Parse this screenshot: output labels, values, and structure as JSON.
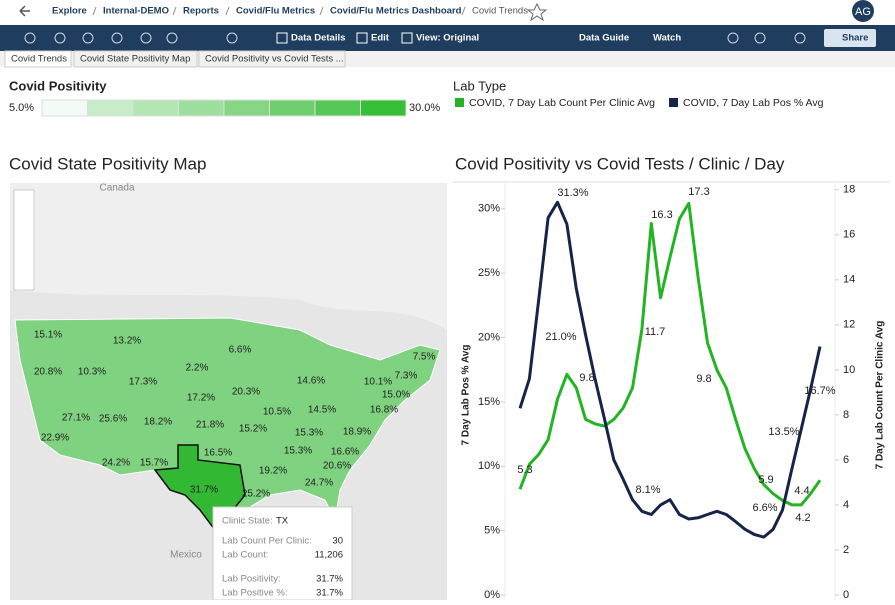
{
  "header": {
    "breadcrumb": [
      "Explore",
      "Internal-DEMO",
      "Reports",
      "Covid/Flu Metrics",
      "Covid/Flu Metrics Dashboard",
      "Covid Trends"
    ],
    "avatar": "AG"
  },
  "toolbar": {
    "left": [
      "Data Details",
      "Edit",
      "View: Original"
    ],
    "right": [
      "Data Guide",
      "Watch",
      "Share"
    ]
  },
  "tabs": [
    "Covid Trends",
    "Covid State Positivity Map",
    "Covid Positivity vs Covid Tests ..."
  ],
  "legends": {
    "positivity": {
      "title": "Covid Positivity",
      "min": "5.0%",
      "max": "30.0%"
    },
    "lab_type": {
      "title": "Lab Type",
      "items": [
        "COVID, 7 Day Lab Count Per Clinic Avg",
        "COVID, 7 Day Lab Pos % Avg"
      ]
    }
  },
  "map": {
    "title": "Covid State Positivity Map",
    "places": [
      "Canada",
      "Mexico"
    ],
    "states": [
      "15.1%",
      "13.2%",
      "20.8%",
      "10.3%",
      "17.3%",
      "2.2%",
      "6.6%",
      "17.2%",
      "20.3%",
      "14.6%",
      "10.1%",
      "7.5%",
      "7.3%",
      "15.0%",
      "27.1%",
      "25.6%",
      "18.2%",
      "21.8%",
      "10.5%",
      "14.5%",
      "16.8%",
      "22.9%",
      "15.2%",
      "15.3%",
      "18.9%",
      "16.5%",
      "15.3%",
      "16.6%",
      "24.2%",
      "15.7%",
      "19.2%",
      "20.6%",
      "24.7%",
      "31.7%",
      "25.2%"
    ],
    "tooltip": [
      [
        "Clinic State:",
        "TX"
      ],
      [
        "Lab Count Per Clinic:",
        "30"
      ],
      [
        "Lab Count:",
        "11,206"
      ],
      [
        "Lab Positivity:",
        "31.7%"
      ],
      [
        "Lab Positive %:",
        "31.7%"
      ]
    ]
  },
  "chart_data": {
    "type": "line",
    "title": "Covid Positivity vs Covid Tests / Clinic / Day",
    "ylabel": "7 Day Lab Pos % Avg",
    "y2label": "7 Day Lab Count Per Clinic Avg",
    "ylim": [
      0,
      32
    ],
    "yticks": [
      {
        "value": 0,
        "label": "0%"
      },
      {
        "value": 5,
        "label": "5%"
      },
      {
        "value": 10,
        "label": "10%"
      },
      {
        "value": 15,
        "label": "15%"
      },
      {
        "value": 20,
        "label": "20%"
      },
      {
        "value": 25,
        "label": "25%"
      },
      {
        "value": 30,
        "label": "30%"
      }
    ],
    "y2lim": [
      0,
      18.3
    ],
    "y2ticks": [
      0,
      2,
      4,
      6,
      8,
      10,
      12,
      14,
      16,
      18
    ],
    "series": [
      {
        "name": "COVID, 7 Day Lab Count Per Clinic Avg",
        "color": "#22b422",
        "axis": "y2",
        "values": [
          4.7,
          5.8,
          6.25,
          6.9,
          8.7,
          9.8,
          9.2,
          7.8,
          7.6,
          7.5,
          7.8,
          8.3,
          9.2,
          11.8,
          16.5,
          13.2,
          15,
          16.7,
          17.4,
          14.1,
          11.2,
          10,
          9.2,
          7.8,
          6.5,
          5.6,
          4.9,
          4.5,
          4.2,
          4.0,
          4.0,
          4.5,
          5.1
        ],
        "annotations": [
          "5.3",
          "9.8",
          "16.3",
          "11.7",
          "17.3",
          "9.8",
          "5.9",
          "4.4",
          "4.2"
        ]
      },
      {
        "name": "COVID, 7 Day Lab Pos % Avg",
        "color": "#16244a",
        "values": [
          14.5,
          16.8,
          23,
          29.3,
          30.5,
          28.8,
          23.8,
          20.2,
          16.8,
          13.7,
          10.5,
          9.0,
          7.4,
          6.5,
          6.25,
          7.0,
          7.4,
          6.25,
          5.9,
          6.0,
          6.25,
          6.5,
          6.25,
          5.7,
          5.1,
          4.7,
          4.5,
          5.1,
          6.6,
          9.8,
          12.9,
          16,
          19.3
        ],
        "annotations": [
          "31.3%",
          "21.0%",
          "8.1%",
          "6.6%",
          "13.5%",
          "16.7%"
        ]
      }
    ]
  }
}
